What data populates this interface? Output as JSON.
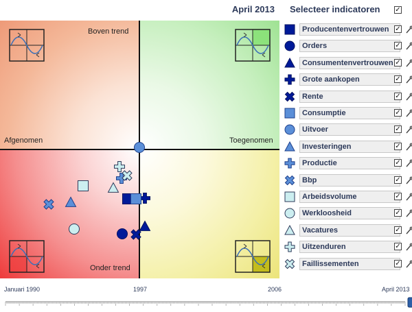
{
  "header": {
    "date": "April 2013",
    "panel_title": "Selecteer indicatoren",
    "select_all_checked": true
  },
  "quadrants": {
    "top_left": "Boven trend",
    "bottom_left": "Onder trend",
    "left_axis": "Afgenomen",
    "right_axis": "Toegenomen"
  },
  "timeline": {
    "labels": [
      "Januari 1990",
      "1997",
      "2006",
      "April 2013"
    ],
    "position": 1.0
  },
  "colors": {
    "dark": "#001a99",
    "mid": "#5b8fd8",
    "light": "#cceef0"
  },
  "indicators": [
    {
      "label": "Producentenvertrouwen",
      "icon": "square-icon",
      "tone": "dark",
      "checked": true
    },
    {
      "label": "Orders",
      "icon": "circle-icon",
      "tone": "dark",
      "checked": true
    },
    {
      "label": "Consumentenvertrouwen",
      "icon": "triangle-icon",
      "tone": "dark",
      "checked": true
    },
    {
      "label": "Grote aankopen",
      "icon": "plus-icon",
      "tone": "dark",
      "checked": true
    },
    {
      "label": "Rente",
      "icon": "cross-icon",
      "tone": "dark",
      "checked": true
    },
    {
      "label": "Consumptie",
      "icon": "square-icon",
      "tone": "mid",
      "checked": true
    },
    {
      "label": "Uitvoer",
      "icon": "circle-icon",
      "tone": "mid",
      "checked": true
    },
    {
      "label": "Investeringen",
      "icon": "triangle-icon",
      "tone": "mid",
      "checked": true
    },
    {
      "label": "Productie",
      "icon": "plus-icon",
      "tone": "mid",
      "checked": true
    },
    {
      "label": "Bbp",
      "icon": "cross-icon",
      "tone": "mid",
      "checked": true
    },
    {
      "label": "Arbeidsvolume",
      "icon": "square-icon",
      "tone": "light",
      "checked": true
    },
    {
      "label": "Werkloosheid",
      "icon": "circle-icon",
      "tone": "light",
      "checked": true
    },
    {
      "label": "Vacatures",
      "icon": "triangle-icon",
      "tone": "light",
      "checked": true
    },
    {
      "label": "Uitzenduren",
      "icon": "plus-icon",
      "tone": "light",
      "checked": true
    },
    {
      "label": "Faillissementen",
      "icon": "cross-icon",
      "tone": "light",
      "checked": true
    }
  ]
}
